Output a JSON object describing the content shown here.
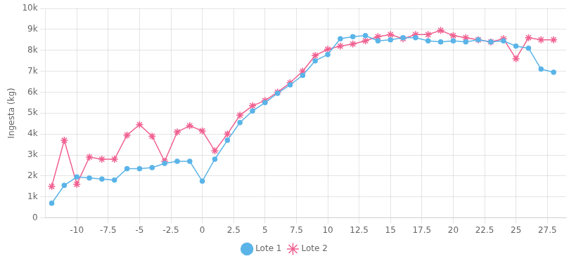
{
  "chart_data": {
    "type": "line",
    "x": [
      -12,
      -11,
      -10,
      -9,
      -8,
      -7,
      -6,
      -5,
      -4,
      -3,
      -2,
      -1,
      0,
      1,
      2,
      3,
      4,
      5,
      6,
      7,
      8,
      9,
      10,
      11,
      12,
      13,
      14,
      15,
      16,
      17,
      18,
      19,
      20,
      21,
      22,
      23,
      24,
      25,
      26,
      27,
      28
    ],
    "series": [
      {
        "name": "Lote 1",
        "color": "#5ab4e8",
        "marker": "circle",
        "values": [
          700,
          1550,
          1950,
          1900,
          1850,
          1800,
          2350,
          2350,
          2400,
          2600,
          2700,
          2700,
          1750,
          2800,
          3700,
          4550,
          5100,
          5500,
          5950,
          6350,
          6800,
          7500,
          7800,
          8550,
          8650,
          8700,
          8450,
          8500,
          8600,
          8600,
          8450,
          8400,
          8450,
          8400,
          8500,
          8400,
          8450,
          8200,
          8100,
          7100,
          6950
        ]
      },
      {
        "name": "Lote 2",
        "color": "#f06090",
        "marker": "star",
        "values": [
          1500,
          3700,
          1600,
          2900,
          2800,
          2800,
          3950,
          4450,
          3900,
          2700,
          4100,
          4400,
          4150,
          3200,
          4000,
          4900,
          5350,
          5600,
          6000,
          6450,
          7000,
          7750,
          8050,
          8200,
          8300,
          8450,
          8650,
          8750,
          8550,
          8750,
          8750,
          8950,
          8700,
          8600,
          8500,
          8400,
          8550,
          7600,
          8600,
          8500,
          8500
        ]
      }
    ],
    "y_label": "Ingesta (kg)",
    "xlim": [
      -12.5,
      29
    ],
    "xticks": [
      -10,
      -7.5,
      -5,
      -2.5,
      0,
      2.5,
      5,
      7.5,
      10,
      12.5,
      15,
      17.5,
      20,
      22.5,
      25,
      27.5
    ],
    "ylim": [
      0,
      10000
    ],
    "yticks": [
      0,
      {
        "value": 1000,
        "label": "1k"
      },
      {
        "value": 2000,
        "label": "2k"
      },
      {
        "value": 3000,
        "label": "3k"
      },
      {
        "value": 4000,
        "label": "4k"
      },
      {
        "value": 5000,
        "label": "5k"
      },
      {
        "value": 6000,
        "label": "6k"
      },
      {
        "value": 7000,
        "label": "7k"
      },
      {
        "value": 8000,
        "label": "8k"
      },
      {
        "value": 9000,
        "label": "9k"
      },
      {
        "value": 10000,
        "label": "10k"
      }
    ],
    "grid": true,
    "legend": "bottom"
  }
}
